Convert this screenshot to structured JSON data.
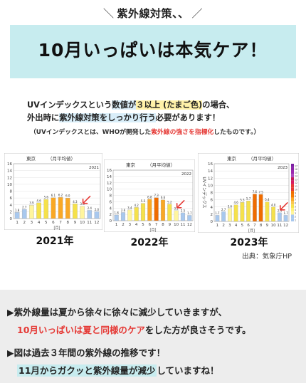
{
  "kicker": "紫外線対策、、",
  "banner_title": "10月いっぱいは本気ケア！",
  "desc": {
    "l1_a": "UVインデックスという",
    "l1_b": "数値が",
    "l1_c": "３以上 (たまご色)",
    "l1_d": "の場合、",
    "l2_a": "外出時に",
    "l2_b": "紫外線対策をしっかり行う",
    "l2_c": "必要があります！",
    "note_a": "（UVインデックスとは、WHOが開発した",
    "note_b": "紫外線の強さを指標化",
    "note_c": "したものです。）"
  },
  "source": "出典：気象庁HP",
  "bottom": {
    "line1": "▶紫外線量は夏から徐々に徐々に減少していきますが、",
    "line2_a": "10月いっぱいは夏と同様のケア",
    "line2_b": "をした方が良さそうです。",
    "line3": "▶図は過去３年間の紫外線の推移です！",
    "line4_a": "11月からガクッと紫外線量が減少",
    "line4_b": "していますね！"
  },
  "colors": {
    "uv_low": "#a8c8ee",
    "uv_moderate": "#fff59d",
    "uv_moderate_dark": "#f5e14b",
    "uv_high": "#f9a825",
    "uv_veryhigh": "#ef6c00",
    "arrow": "#e53935",
    "banner": "#c7ecef"
  },
  "chart_data": [
    {
      "type": "bar",
      "location": "東京",
      "unit": "（月平均値）",
      "year_tag": "2021",
      "caption": "2021年",
      "xlabel": "[月]",
      "ylim": [
        0,
        16
      ],
      "yticks": [
        0,
        2,
        4,
        6,
        8,
        10,
        12,
        14,
        16
      ],
      "categories": [
        "1",
        "2",
        "3",
        "4",
        "5",
        "6",
        "7",
        "8",
        "9",
        "10",
        "11",
        "12"
      ],
      "values": [
        1.8,
        2.7,
        3.9,
        4.6,
        5.6,
        6.1,
        6.2,
        6.0,
        4.3,
        3.6,
        2.4,
        2.0
      ],
      "arrow_month": "10",
      "grid": true
    },
    {
      "type": "bar",
      "location": "東京",
      "unit": "（月平均値）",
      "year_tag": "2022",
      "caption": "2022年",
      "xlabel": "[月]",
      "ylim": [
        0,
        16
      ],
      "yticks": [
        0,
        2,
        4,
        6,
        8,
        10,
        12,
        14,
        16
      ],
      "categories": [
        "1",
        "2",
        "3",
        "4",
        "5",
        "6",
        "7",
        "8",
        "9",
        "10",
        "11",
        "12"
      ],
      "values": [
        1.8,
        2.6,
        3.4,
        4.2,
        5.5,
        6.8,
        7.3,
        6.6,
        5.2,
        3.2,
        2.5,
        1.7
      ],
      "arrow_month": "10",
      "grid": true
    },
    {
      "type": "bar",
      "location": "東京",
      "unit": "（月平均値）",
      "year_tag": "2023",
      "caption": "2023年",
      "xlabel": "[月]",
      "ylabel": "UVインデックス",
      "ylim": [
        0,
        16
      ],
      "yticks": [
        0,
        2,
        4,
        6,
        8,
        10,
        12,
        14,
        16
      ],
      "categories": [
        "1",
        "2",
        "3",
        "4",
        "5",
        "6",
        "7",
        "8",
        "9",
        "10",
        "11",
        "12"
      ],
      "values": [
        1.7,
        2.7,
        3.6,
        4.6,
        5.3,
        5.7,
        7.6,
        7.5,
        5.4,
        4.0,
        2.4,
        1.7
      ],
      "arrow_month": "11",
      "legend": "right",
      "legend_levels": [
        "1",
        "2",
        "3",
        "4",
        "5",
        "6",
        "7",
        "8",
        "9",
        "10",
        "11",
        "12",
        "13",
        "14",
        "15",
        "16",
        "17"
      ],
      "grid": true
    }
  ]
}
